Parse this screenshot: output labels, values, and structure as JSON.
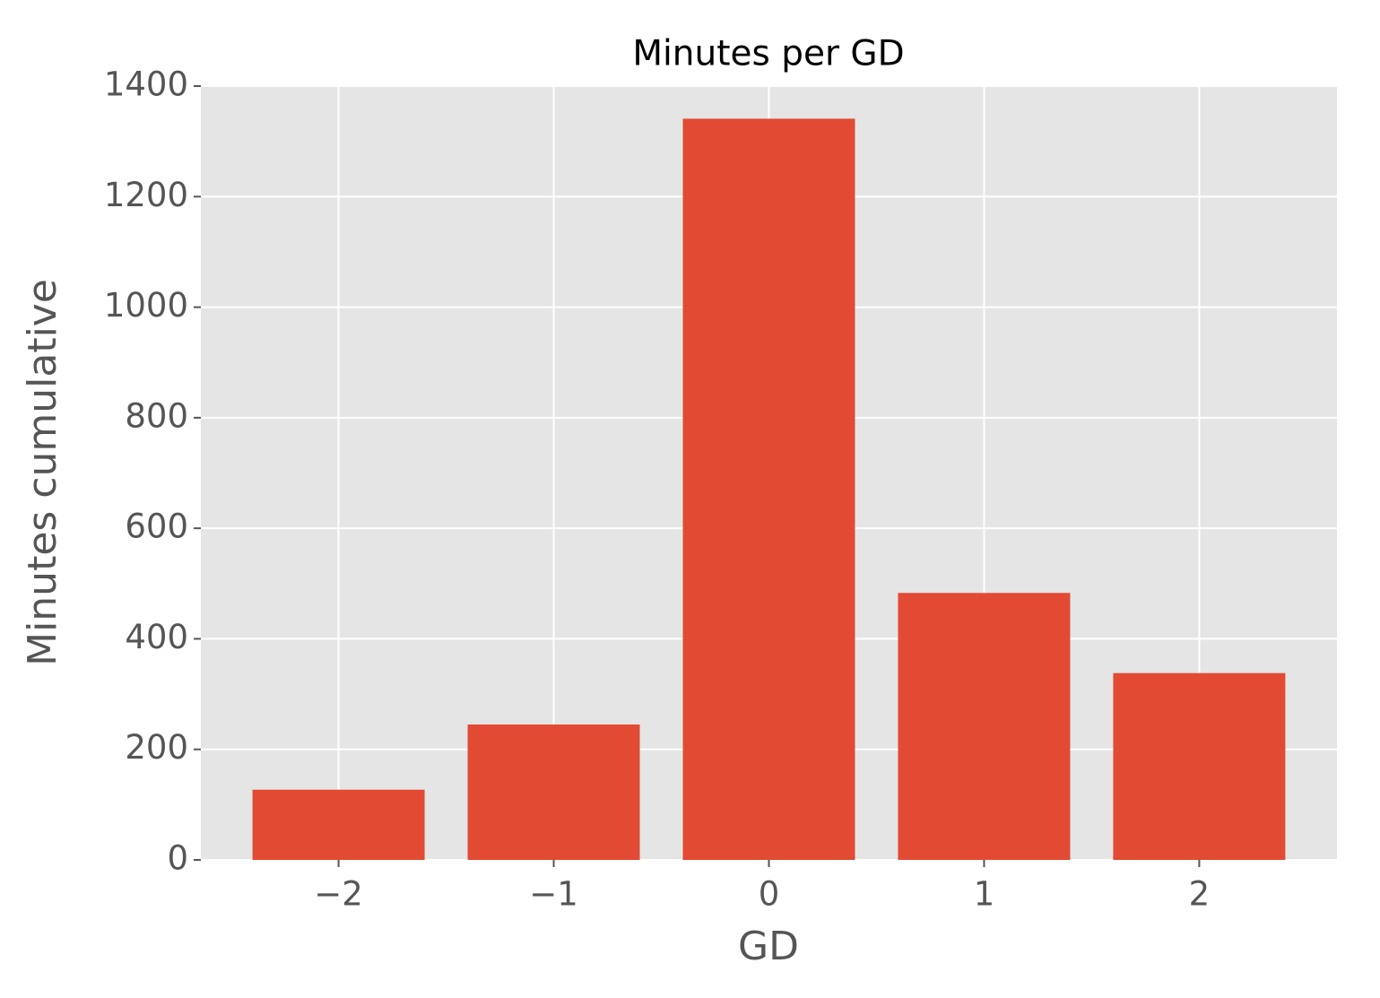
{
  "chart_data": {
    "type": "bar",
    "title": "Minutes per GD",
    "x_label": "GD",
    "y_label": "Minutes cumulative",
    "x": [
      -2,
      -1,
      0,
      1,
      2
    ],
    "values": [
      127,
      245,
      1341,
      483,
      338
    ],
    "color": "#e24a33",
    "xlim": [
      -2.64,
      2.64
    ],
    "xticks": [
      {
        "value": -2,
        "label": "−2"
      },
      {
        "value": -1,
        "label": "−1"
      },
      0,
      1,
      2
    ],
    "ylim": [
      0,
      1400
    ],
    "yticks": [
      0,
      200,
      400,
      600,
      800,
      1000,
      1200,
      1400
    ],
    "grid": true
  }
}
